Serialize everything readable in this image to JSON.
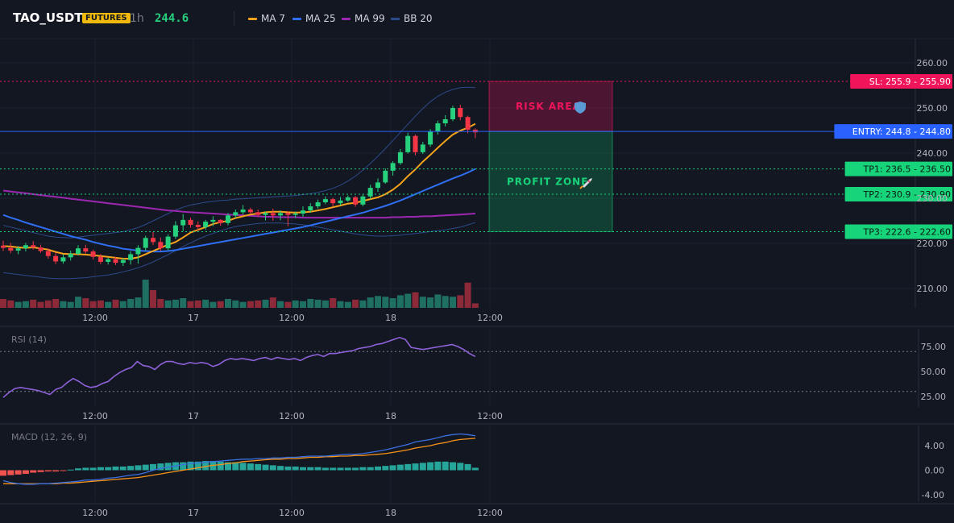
{
  "header": {
    "symbol": "TAO_USDT",
    "badge": "FUTURES",
    "timeframe": "1h",
    "price": "244.6",
    "legend": [
      {
        "label": "MA 7",
        "color": "#f7a21b"
      },
      {
        "label": "MA 25",
        "color": "#2f6ff3"
      },
      {
        "label": "MA 99",
        "color": "#9c27b0"
      },
      {
        "label": "BB 20",
        "color": "#2c4a8a"
      }
    ]
  },
  "panes": {
    "rsi_label": "RSI (14)",
    "macd_label": "MACD (12, 26, 9)"
  },
  "zones": {
    "risk_label": "RISK AREA",
    "profit_label": "PROFIT ZONE"
  },
  "levels": [
    {
      "name": "sl",
      "label": "SL: 255.9 - 255.90",
      "price": 255.9,
      "color": "#f0145a",
      "style": "dotted"
    },
    {
      "name": "entry",
      "label": "ENTRY: 244.8 - 244.80",
      "price": 244.8,
      "color": "#2962ff",
      "style": "solid"
    },
    {
      "name": "tp1",
      "label": "TP1: 236.5 - 236.50",
      "price": 236.5,
      "color": "#17d37a",
      "style": "dotted"
    },
    {
      "name": "tp2",
      "label": "TP2: 230.9 - 230.90",
      "price": 230.9,
      "color": "#17d37a",
      "style": "dotted"
    },
    {
      "name": "tp3",
      "label": "TP3: 222.6 - 222.60",
      "price": 222.6,
      "color": "#17d37a",
      "style": "dotted"
    }
  ],
  "colors": {
    "up": "#26d07c",
    "down": "#f23645",
    "vol_up": "#1f6f63",
    "vol_down": "#8c2a3a",
    "rsi": "#8e62d8",
    "macd": "#3a6fe0",
    "signal": "#f7931a"
  },
  "chart_data": [
    {
      "type": "candlestick",
      "name": "price",
      "x_ticks": [
        "12:00",
        "17",
        "12:00",
        "18",
        "12:00"
      ],
      "y_ticks": [
        "210.00",
        "220.00",
        "230.00",
        "240.00",
        "250.00",
        "260.00"
      ],
      "ylim": [
        205,
        262
      ],
      "candles": [
        [
          219.5,
          220.6,
          218.3,
          219.0
        ],
        [
          219.0,
          220.1,
          217.8,
          218.4
        ],
        [
          218.4,
          219.4,
          217.6,
          218.9
        ],
        [
          218.9,
          220.1,
          218.2,
          219.6
        ],
        [
          219.6,
          220.5,
          218.6,
          219.1
        ],
        [
          219.1,
          219.7,
          217.9,
          218.3
        ],
        [
          218.3,
          218.9,
          216.6,
          217.2
        ],
        [
          217.2,
          218.0,
          215.4,
          216.0
        ],
        [
          216.0,
          217.6,
          215.5,
          216.9
        ],
        [
          216.9,
          218.4,
          216.2,
          217.7
        ],
        [
          217.7,
          219.6,
          217.3,
          218.9
        ],
        [
          218.9,
          219.7,
          217.7,
          218.2
        ],
        [
          218.2,
          218.6,
          216.4,
          217.0
        ],
        [
          217.0,
          217.6,
          215.4,
          215.9
        ],
        [
          215.9,
          216.9,
          215.3,
          216.5
        ],
        [
          216.5,
          217.0,
          215.2,
          215.7
        ],
        [
          215.7,
          216.8,
          215.0,
          216.3
        ],
        [
          216.3,
          218.3,
          215.3,
          217.6
        ],
        [
          217.6,
          219.6,
          215.5,
          219.0
        ],
        [
          219.0,
          221.7,
          218.4,
          221.2
        ],
        [
          221.2,
          222.5,
          219.6,
          220.3
        ],
        [
          220.3,
          221.3,
          218.3,
          218.9
        ],
        [
          218.9,
          222.0,
          218.5,
          221.5
        ],
        [
          221.5,
          224.9,
          221.0,
          224.0
        ],
        [
          224.0,
          226.5,
          222.7,
          225.2
        ],
        [
          225.2,
          225.7,
          223.5,
          224.1
        ],
        [
          224.1,
          224.9,
          222.8,
          223.6
        ],
        [
          223.6,
          225.2,
          223.0,
          224.8
        ],
        [
          224.8,
          226.0,
          223.8,
          225.2
        ],
        [
          225.2,
          225.4,
          223.9,
          224.5
        ],
        [
          224.5,
          226.7,
          224.0,
          226.2
        ],
        [
          226.2,
          227.5,
          225.6,
          226.9
        ],
        [
          226.9,
          228.5,
          226.4,
          227.5
        ],
        [
          227.5,
          227.9,
          226.5,
          226.9
        ],
        [
          226.9,
          227.5,
          225.9,
          226.3
        ],
        [
          226.3,
          227.0,
          225.1,
          226.7
        ],
        [
          226.7,
          227.7,
          225.0,
          226.2
        ],
        [
          226.2,
          227.3,
          225.1,
          226.7
        ],
        [
          226.7,
          227.1,
          223.8,
          226.3
        ],
        [
          226.3,
          227.1,
          225.6,
          226.6
        ],
        [
          226.6,
          228.2,
          225.9,
          227.3
        ],
        [
          227.3,
          228.9,
          226.8,
          228.2
        ],
        [
          228.2,
          229.7,
          227.7,
          229.1
        ],
        [
          229.1,
          230.4,
          228.7,
          229.8
        ],
        [
          229.8,
          230.1,
          228.1,
          228.9
        ],
        [
          228.9,
          230.3,
          228.4,
          229.5
        ],
        [
          229.5,
          230.6,
          229.2,
          230.2
        ],
        [
          230.2,
          230.5,
          228.1,
          228.6
        ],
        [
          228.6,
          230.9,
          228.2,
          230.4
        ],
        [
          230.4,
          233.0,
          229.8,
          232.3
        ],
        [
          232.3,
          234.4,
          231.4,
          233.5
        ],
        [
          233.5,
          236.6,
          233.2,
          236.1
        ],
        [
          236.1,
          238.2,
          235.0,
          237.8
        ],
        [
          237.8,
          240.9,
          237.4,
          240.2
        ],
        [
          240.2,
          244.5,
          239.9,
          243.8
        ],
        [
          243.8,
          244.1,
          239.5,
          240.2
        ],
        [
          240.2,
          242.5,
          239.8,
          241.9
        ],
        [
          241.9,
          245.3,
          241.4,
          244.8
        ],
        [
          244.8,
          247.2,
          244.1,
          246.6
        ],
        [
          246.6,
          248.4,
          245.9,
          247.5
        ],
        [
          247.5,
          250.5,
          247.1,
          250.0
        ],
        [
          250.0,
          250.7,
          247.3,
          248.0
        ],
        [
          248.0,
          248.3,
          244.4,
          245.2
        ],
        [
          245.2,
          245.5,
          243.3,
          244.6
        ]
      ],
      "volume": [
        12,
        10,
        8,
        9,
        11,
        8,
        10,
        12,
        9,
        8,
        15,
        13,
        9,
        10,
        8,
        11,
        9,
        12,
        14,
        38,
        24,
        12,
        10,
        11,
        13,
        9,
        10,
        11,
        8,
        9,
        12,
        10,
        8,
        9,
        10,
        11,
        14,
        9,
        8,
        10,
        9,
        12,
        11,
        10,
        13,
        9,
        8,
        11,
        10,
        14,
        16,
        15,
        13,
        17,
        19,
        21,
        15,
        14,
        18,
        16,
        15,
        17,
        34,
        6
      ],
      "ma7": [
        219.4,
        219.3,
        219.1,
        219.0,
        219.1,
        218.9,
        218.6,
        218.1,
        217.7,
        217.6,
        217.6,
        217.5,
        217.4,
        217.2,
        217.0,
        216.8,
        216.6,
        216.6,
        216.9,
        217.6,
        218.3,
        219.0,
        219.7,
        220.3,
        221.3,
        222.4,
        223.0,
        223.6,
        224.3,
        224.7,
        225.0,
        225.6,
        226.0,
        226.4,
        226.6,
        226.9,
        227.0,
        227.0,
        226.9,
        226.8,
        226.9,
        227.0,
        227.3,
        227.6,
        228.0,
        228.4,
        228.8,
        229.0,
        229.4,
        229.8,
        230.2,
        230.9,
        231.9,
        233.2,
        234.9,
        236.4,
        238.1,
        239.6,
        241.2,
        242.7,
        244.1,
        245.0,
        245.6,
        246.5
      ],
      "ma25": [
        226.3,
        225.7,
        225.2,
        224.6,
        224.1,
        223.6,
        223.1,
        222.6,
        222.1,
        221.6,
        221.2,
        220.8,
        220.3,
        219.9,
        219.5,
        219.2,
        218.8,
        218.6,
        218.4,
        218.3,
        218.2,
        218.2,
        218.3,
        218.5,
        218.8,
        219.1,
        219.4,
        219.7,
        220.0,
        220.3,
        220.6,
        220.9,
        221.2,
        221.5,
        221.8,
        222.1,
        222.4,
        222.7,
        223.0,
        223.3,
        223.6,
        224.0,
        224.4,
        224.8,
        225.2,
        225.6,
        226.0,
        226.4,
        226.8,
        227.3,
        227.8,
        228.3,
        228.9,
        229.5,
        230.2,
        230.9,
        231.6,
        232.3,
        233.0,
        233.7,
        234.4,
        235.0,
        235.7,
        236.5
      ],
      "ma99": [
        231.7,
        231.5,
        231.3,
        231.1,
        230.9,
        230.7,
        230.5,
        230.3,
        230.1,
        229.9,
        229.7,
        229.5,
        229.3,
        229.1,
        228.9,
        228.7,
        228.5,
        228.3,
        228.1,
        227.9,
        227.7,
        227.5,
        227.3,
        227.2,
        227.0,
        226.9,
        226.8,
        226.7,
        226.6,
        226.5,
        226.4,
        226.3,
        226.2,
        226.1,
        226.0,
        225.9,
        225.9,
        225.8,
        225.8,
        225.8,
        225.7,
        225.7,
        225.7,
        225.7,
        225.7,
        225.7,
        225.7,
        225.7,
        225.7,
        225.7,
        225.7,
        225.7,
        225.8,
        225.8,
        225.9,
        225.9,
        226.0,
        226.0,
        226.1,
        226.2,
        226.3,
        226.4,
        226.5,
        226.6
      ],
      "bb_upper": [
        224.0,
        223.6,
        223.2,
        222.8,
        222.4,
        222.0,
        221.6,
        221.4,
        221.3,
        221.2,
        221.4,
        221.6,
        221.8,
        222.0,
        222.2,
        222.4,
        222.6,
        223.0,
        223.5,
        224.2,
        225.0,
        225.8,
        226.6,
        227.4,
        228.0,
        228.5,
        228.8,
        229.1,
        229.3,
        229.5,
        229.6,
        229.8,
        229.9,
        230.0,
        230.1,
        230.2,
        230.3,
        230.4,
        230.5,
        230.6,
        230.8,
        231.0,
        231.3,
        231.7,
        232.2,
        232.9,
        233.8,
        234.9,
        236.2,
        237.7,
        239.3,
        241.0,
        242.8,
        244.6,
        246.4,
        248.2,
        249.9,
        251.4,
        252.6,
        253.5,
        254.1,
        254.5,
        254.6,
        254.5
      ],
      "bb_lower": [
        213.5,
        213.3,
        213.1,
        212.9,
        212.7,
        212.5,
        212.3,
        212.2,
        212.2,
        212.2,
        212.3,
        212.4,
        212.6,
        212.8,
        213.0,
        213.3,
        213.7,
        214.1,
        214.6,
        215.2,
        215.9,
        216.7,
        217.5,
        218.4,
        219.3,
        220.1,
        220.9,
        221.6,
        222.2,
        222.8,
        223.3,
        223.7,
        224.0,
        224.2,
        224.4,
        224.5,
        224.5,
        224.5,
        224.4,
        224.3,
        224.1,
        223.9,
        223.6,
        223.3,
        223.0,
        222.7,
        222.4,
        222.1,
        221.9,
        221.7,
        221.6,
        221.6,
        221.7,
        221.8,
        222.0,
        222.2,
        222.4,
        222.6,
        222.8,
        223.0,
        223.3,
        223.6,
        224.1,
        224.6
      ]
    },
    {
      "type": "line",
      "name": "rsi",
      "x_ticks": [
        "12:00",
        "17",
        "12:00",
        "18",
        "12:00"
      ],
      "y_ticks": [
        "25.00",
        "50.00",
        "75.00"
      ],
      "ylim": [
        15,
        85
      ],
      "levels": [
        70,
        30
      ],
      "values": [
        24,
        29,
        33,
        34,
        33,
        32,
        31,
        29,
        27,
        32,
        34,
        39,
        43,
        40,
        36,
        34,
        35,
        38,
        40,
        45,
        49,
        52,
        54,
        60,
        56,
        55,
        52,
        57,
        60,
        60,
        58,
        57,
        59,
        58,
        59,
        58,
        55,
        57,
        61,
        63,
        62,
        63,
        62,
        61,
        63,
        64,
        62,
        64,
        63,
        62,
        63,
        61,
        64,
        66,
        67,
        65,
        68,
        68,
        69,
        70,
        71,
        73,
        74,
        75,
        77,
        78,
        80,
        82,
        84,
        82,
        74,
        73,
        72,
        73,
        74,
        75,
        76,
        77,
        75,
        72,
        68,
        65
      ],
      "end_at_candle": 63
    },
    {
      "type": "line",
      "name": "macd",
      "x_ticks": [
        "12:00",
        "17",
        "12:00",
        "18",
        "12:00"
      ],
      "y_ticks": [
        "4.00",
        "0.00",
        "-4.00"
      ],
      "ylim": [
        -5.5,
        6.5
      ],
      "macd": [
        -1.7,
        -2.0,
        -2.2,
        -2.3,
        -2.3,
        -2.2,
        -2.2,
        -2.1,
        -2.0,
        -1.9,
        -1.8,
        -1.6,
        -1.6,
        -1.5,
        -1.3,
        -1.2,
        -1.0,
        -0.8,
        -0.7,
        -0.4,
        0.0,
        0.3,
        0.5,
        0.7,
        0.9,
        1.1,
        1.2,
        1.3,
        1.4,
        1.5,
        1.6,
        1.7,
        1.8,
        1.8,
        1.9,
        1.9,
        2.0,
        2.0,
        2.1,
        2.1,
        2.2,
        2.3,
        2.3,
        2.3,
        2.4,
        2.5,
        2.6,
        2.6,
        2.7,
        2.9,
        3.1,
        3.3,
        3.6,
        3.9,
        4.2,
        4.6,
        4.8,
        5.0,
        5.3,
        5.6,
        5.8,
        5.9,
        5.8,
        5.6
      ],
      "signal": [
        -2.2,
        -2.2,
        -2.2,
        -2.2,
        -2.2,
        -2.2,
        -2.2,
        -2.2,
        -2.1,
        -2.1,
        -2.0,
        -1.9,
        -1.8,
        -1.7,
        -1.6,
        -1.5,
        -1.4,
        -1.3,
        -1.2,
        -1.0,
        -0.8,
        -0.6,
        -0.4,
        -0.2,
        0.0,
        0.2,
        0.4,
        0.6,
        0.8,
        0.9,
        1.1,
        1.2,
        1.4,
        1.5,
        1.6,
        1.7,
        1.8,
        1.8,
        1.9,
        1.9,
        2.0,
        2.1,
        2.1,
        2.2,
        2.2,
        2.3,
        2.3,
        2.4,
        2.4,
        2.5,
        2.6,
        2.7,
        2.9,
        3.1,
        3.3,
        3.6,
        3.8,
        4.0,
        4.3,
        4.5,
        4.8,
        5.0,
        5.1,
        5.2
      ],
      "histogram": [
        -0.9,
        -0.8,
        -0.7,
        -0.6,
        -0.4,
        -0.3,
        -0.2,
        -0.2,
        -0.1,
        0.1,
        0.3,
        0.4,
        0.4,
        0.5,
        0.5,
        0.6,
        0.6,
        0.7,
        0.8,
        0.9,
        1.0,
        1.1,
        1.2,
        1.3,
        1.3,
        1.4,
        1.4,
        1.5,
        1.5,
        1.4,
        1.3,
        1.3,
        1.2,
        1.1,
        1.0,
        0.9,
        0.8,
        0.7,
        0.6,
        0.6,
        0.5,
        0.5,
        0.5,
        0.4,
        0.4,
        0.4,
        0.4,
        0.4,
        0.5,
        0.5,
        0.6,
        0.7,
        0.8,
        0.9,
        1.0,
        1.1,
        1.2,
        1.3,
        1.4,
        1.4,
        1.3,
        1.2,
        1.0,
        0.4
      ]
    }
  ]
}
